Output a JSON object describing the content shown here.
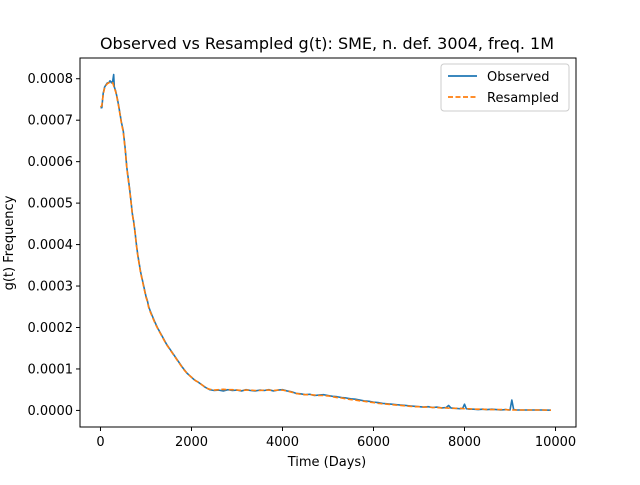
{
  "chart_data": {
    "type": "line",
    "title": "Observed vs Resampled g(t): SME, n. def. 3004, freq. 1M",
    "xlabel": "Time (Days)",
    "ylabel": "g(t) Frequency",
    "xlim": [
      -450,
      10450
    ],
    "ylim": [
      -4e-05,
      0.00085
    ],
    "xticks": [
      0,
      2000,
      4000,
      6000,
      8000,
      10000
    ],
    "xtick_labels": [
      "0",
      "2000",
      "4000",
      "6000",
      "8000",
      "10000"
    ],
    "yticks": [
      0.0,
      0.0001,
      0.0002,
      0.0003,
      0.0004,
      0.0005,
      0.0006,
      0.0007,
      0.0008
    ],
    "ytick_labels": [
      "0.0000",
      "0.0001",
      "0.0002",
      "0.0003",
      "0.0004",
      "0.0005",
      "0.0006",
      "0.0007",
      "0.0008"
    ],
    "grid": false,
    "legend_position": "top-right",
    "series": [
      {
        "name": "Observed",
        "color": "#1f77b4",
        "style": "solid",
        "x": [
          0,
          30,
          60,
          91,
          120,
          150,
          180,
          210,
          243,
          270,
          290,
          304,
          335,
          365,
          400,
          430,
          460,
          500,
          540,
          580,
          610,
          640,
          670,
          700,
          730,
          760,
          790,
          820,
          850,
          880,
          910,
          940,
          970,
          1000,
          1030,
          1060,
          1100,
          1150,
          1200,
          1250,
          1300,
          1350,
          1400,
          1450,
          1500,
          1550,
          1600,
          1650,
          1700,
          1750,
          1800,
          1850,
          1900,
          1950,
          2000,
          2050,
          2100,
          2150,
          2200,
          2250,
          2300,
          2350,
          2400,
          2450,
          2500,
          2600,
          2700,
          2800,
          2900,
          3000,
          3100,
          3200,
          3300,
          3400,
          3500,
          3600,
          3700,
          3800,
          3900,
          4000,
          4100,
          4200,
          4300,
          4400,
          4500,
          4600,
          4700,
          4800,
          4900,
          5000,
          5100,
          5200,
          5300,
          5400,
          5500,
          5600,
          5700,
          5800,
          5900,
          6000,
          6100,
          6200,
          6300,
          6400,
          6500,
          6600,
          6700,
          6800,
          6900,
          7000,
          7100,
          7200,
          7300,
          7400,
          7500,
          7600,
          7650,
          7700,
          7800,
          7900,
          7960,
          8000,
          8040,
          8100,
          8200,
          8300,
          8400,
          8500,
          8600,
          8700,
          8800,
          8900,
          9000,
          9040,
          9080,
          9150,
          9300,
          9500,
          9700,
          9900
        ],
        "values": [
          0.00073,
          0.00073,
          0.000765,
          0.00078,
          0.000785,
          0.00079,
          0.00079,
          0.000795,
          0.00079,
          0.000795,
          0.00081,
          0.00078,
          0.00077,
          0.000755,
          0.000735,
          0.000715,
          0.000695,
          0.000675,
          0.000635,
          0.000585,
          0.00056,
          0.000535,
          0.000505,
          0.000475,
          0.000455,
          0.00043,
          0.0004,
          0.000375,
          0.000355,
          0.000335,
          0.00032,
          0.000305,
          0.00029,
          0.000275,
          0.000265,
          0.00025,
          0.000238,
          0.000225,
          0.000212,
          0.0002,
          0.00019,
          0.00018,
          0.00017,
          0.00016,
          0.000152,
          0.000144,
          0.000136,
          0.000128,
          0.00012,
          0.000112,
          0.000104,
          9.7e-05,
          9e-05,
          8.5e-05,
          8e-05,
          7.5e-05,
          7.1e-05,
          6.8e-05,
          6.4e-05,
          6e-05,
          5.6e-05,
          5.3e-05,
          5e-05,
          4.9e-05,
          4.8e-05,
          4.9e-05,
          4.7e-05,
          5e-05,
          4.8e-05,
          4.9e-05,
          4.7e-05,
          5e-05,
          4.8e-05,
          4.7e-05,
          4.9e-05,
          4.8e-05,
          5e-05,
          4.7e-05,
          4.9e-05,
          5e-05,
          4.7e-05,
          4.5e-05,
          4.1e-05,
          4e-05,
          3.8e-05,
          3.9e-05,
          3.6e-05,
          3.7e-05,
          3.8e-05,
          3.6e-05,
          3.4e-05,
          3.3e-05,
          3.1e-05,
          3e-05,
          2.8e-05,
          2.7e-05,
          2.5e-05,
          2.3e-05,
          2.2e-05,
          2e-05,
          1.9e-05,
          1.7e-05,
          1.6e-05,
          1.5e-05,
          1.4e-05,
          1.3e-05,
          1.2e-05,
          1.1e-05,
          1e-05,
          9e-06,
          8e-06,
          9e-06,
          7e-06,
          8e-06,
          6e-06,
          7e-06,
          1.2e-05,
          6e-06,
          5e-06,
          4e-06,
          5e-06,
          1.5e-05,
          4e-06,
          3e-06,
          3e-06,
          2e-06,
          3e-06,
          2e-06,
          3e-06,
          2e-06,
          1e-06,
          2e-06,
          1e-06,
          2.5e-05,
          2e-06,
          1e-06,
          1e-06,
          1e-06,
          1e-06,
          5e-07
        ]
      },
      {
        "name": "Resampled",
        "color": "#ff7f0e",
        "style": "dashed",
        "x": [
          0,
          30,
          60,
          91,
          120,
          150,
          180,
          210,
          243,
          270,
          304,
          335,
          365,
          400,
          430,
          460,
          500,
          540,
          580,
          610,
          640,
          670,
          700,
          730,
          760,
          790,
          820,
          850,
          880,
          910,
          940,
          970,
          1000,
          1030,
          1060,
          1100,
          1150,
          1200,
          1250,
          1300,
          1350,
          1400,
          1450,
          1500,
          1550,
          1600,
          1650,
          1700,
          1750,
          1800,
          1850,
          1900,
          1950,
          2000,
          2050,
          2100,
          2150,
          2200,
          2250,
          2300,
          2350,
          2400,
          2450,
          2500,
          2600,
          2700,
          2800,
          2900,
          3000,
          3100,
          3200,
          3300,
          3400,
          3500,
          3600,
          3700,
          3800,
          3900,
          4000,
          4100,
          4200,
          4300,
          4400,
          4500,
          4600,
          4700,
          4800,
          4900,
          5000,
          5100,
          5200,
          5300,
          5400,
          5500,
          5600,
          5700,
          5800,
          5900,
          6000,
          6100,
          6200,
          6300,
          6400,
          6500,
          6600,
          6700,
          6800,
          6900,
          7000,
          7100,
          7200,
          7300,
          7400,
          7500,
          7600,
          7700,
          7800,
          7900,
          8000,
          8100,
          8200,
          8300,
          8400,
          8500,
          8600,
          8700,
          8800,
          8900,
          9000,
          9150,
          9300,
          9500,
          9700,
          9900
        ],
        "values": [
          0.000732,
          0.000735,
          0.000762,
          0.000778,
          0.000784,
          0.000788,
          0.00079,
          0.000792,
          0.00079,
          0.00079,
          0.000778,
          0.000768,
          0.000753,
          0.000733,
          0.000713,
          0.000693,
          0.000672,
          0.000632,
          0.000583,
          0.000557,
          0.000532,
          0.000503,
          0.000473,
          0.000452,
          0.000428,
          0.000398,
          0.000373,
          0.000353,
          0.000333,
          0.000318,
          0.000303,
          0.000288,
          0.000273,
          0.000263,
          0.000248,
          0.000236,
          0.000223,
          0.00021,
          0.000199,
          0.000189,
          0.000179,
          0.000169,
          0.000159,
          0.000151,
          0.000143,
          0.000135,
          0.000127,
          0.000119,
          0.000111,
          0.000103,
          9.6e-05,
          9e-05,
          8.5e-05,
          8e-05,
          7.5e-05,
          7.1e-05,
          6.8e-05,
          6.4e-05,
          6e-05,
          5.6e-05,
          5.3e-05,
          5.1e-05,
          5e-05,
          4.9e-05,
          5e-05,
          5.1e-05,
          5e-05,
          5e-05,
          4.9e-05,
          4.8e-05,
          4.9e-05,
          4.9e-05,
          4.8e-05,
          4.8e-05,
          4.9e-05,
          4.9e-05,
          4.8e-05,
          4.9e-05,
          4.9e-05,
          4.7e-05,
          4.4e-05,
          4.1e-05,
          3.9e-05,
          3.8e-05,
          3.8e-05,
          3.7e-05,
          3.6e-05,
          3.6e-05,
          3.5e-05,
          3.3e-05,
          3.1e-05,
          3e-05,
          2.8e-05,
          2.6e-05,
          2.5e-05,
          2.3e-05,
          2.2e-05,
          2e-05,
          1.9e-05,
          1.7e-05,
          1.6e-05,
          1.5e-05,
          1.4e-05,
          1.3e-05,
          1.2e-05,
          1.1e-05,
          1e-05,
          9e-06,
          9e-06,
          8e-06,
          8e-06,
          7e-06,
          7e-06,
          6e-06,
          6e-06,
          5e-06,
          5e-06,
          5e-06,
          4e-06,
          4e-06,
          3e-06,
          3e-06,
          3e-06,
          2e-06,
          2e-06,
          2e-06,
          2e-06,
          2e-06,
          1e-06,
          1e-06,
          1e-06,
          1e-06,
          1e-06,
          5e-07
        ]
      }
    ]
  }
}
